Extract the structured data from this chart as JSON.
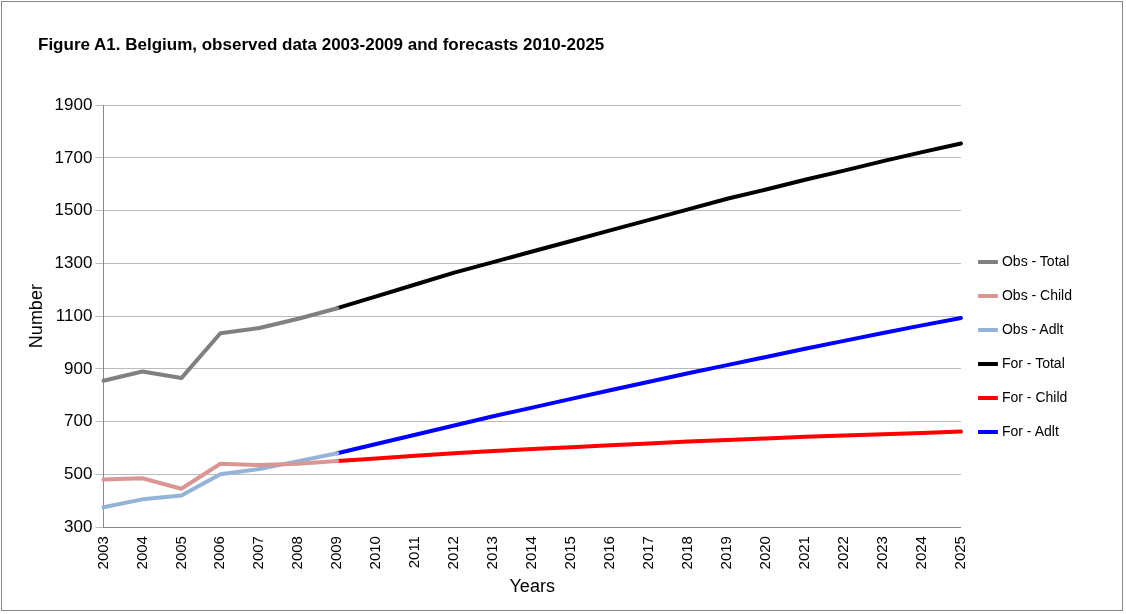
{
  "chart_data": {
    "type": "line",
    "title": "Figure A1. Belgium, observed data 2003-2009 and forecasts 2010-2025",
    "xlabel": "Years",
    "ylabel": "Number",
    "categories": [
      "2003",
      "2004",
      "2005",
      "2006",
      "2007",
      "2008",
      "2009",
      "2010",
      "2011",
      "2012",
      "2013",
      "2014",
      "2015",
      "2016",
      "2017",
      "2018",
      "2019",
      "2020",
      "2021",
      "2022",
      "2023",
      "2024",
      "2025"
    ],
    "series": [
      {
        "name": "Obs - Total",
        "color": "#808080",
        "values": [
          855,
          890,
          865,
          1035,
          1055,
          1090,
          1130,
          null,
          null,
          null,
          null,
          null,
          null,
          null,
          null,
          null,
          null,
          null,
          null,
          null,
          null,
          null,
          null
        ]
      },
      {
        "name": "Obs - Child",
        "color": "#d99694",
        "values": [
          480,
          485,
          445,
          540,
          535,
          540,
          550,
          null,
          null,
          null,
          null,
          null,
          null,
          null,
          null,
          null,
          null,
          null,
          null,
          null,
          null,
          null,
          null
        ]
      },
      {
        "name": "Obs - Adlt",
        "color": "#95b3d7",
        "values": [
          375,
          405,
          420,
          500,
          520,
          550,
          580,
          null,
          null,
          null,
          null,
          null,
          null,
          null,
          null,
          null,
          null,
          null,
          null,
          null,
          null,
          null,
          null
        ]
      },
      {
        "name": "For - Total",
        "color": "#000000",
        "values": [
          null,
          null,
          null,
          null,
          null,
          null,
          1130,
          1175,
          1220,
          1265,
          1305,
          1345,
          1385,
          1425,
          1465,
          1505,
          1545,
          1580,
          1617,
          1652,
          1688,
          1722,
          1755
        ]
      },
      {
        "name": "For - Child",
        "color": "#ff0000",
        "values": [
          null,
          null,
          null,
          null,
          null,
          null,
          550,
          560,
          570,
          580,
          588,
          596,
          603,
          610,
          617,
          624,
          630,
          636,
          642,
          647,
          652,
          657,
          662
        ]
      },
      {
        "name": "For - Adlt",
        "color": "#0000ff",
        "values": [
          null,
          null,
          null,
          null,
          null,
          null,
          580,
          615,
          650,
          685,
          720,
          753,
          786,
          819,
          851,
          883,
          914,
          945,
          976,
          1006,
          1036,
          1065,
          1093
        ]
      }
    ],
    "ylim": [
      300,
      1900
    ],
    "yticks": [
      300,
      500,
      700,
      900,
      1100,
      1300,
      1500,
      1700,
      1900
    ],
    "grid": "y",
    "legend": "right",
    "marker": "none",
    "line_style": "solid"
  }
}
